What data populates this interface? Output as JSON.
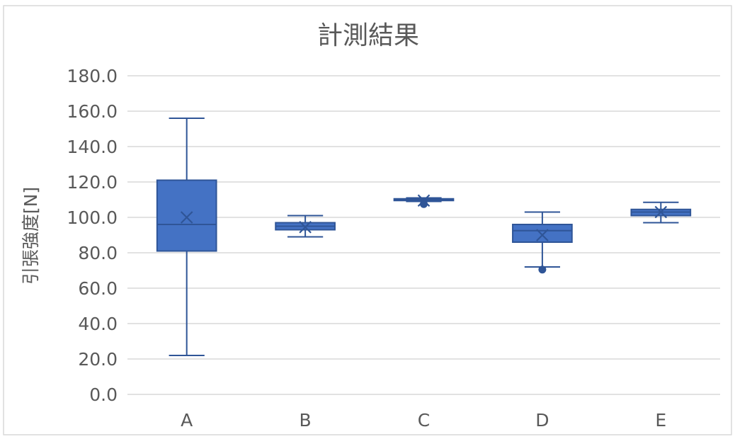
{
  "chart_data": {
    "type": "box",
    "title": "計測結果",
    "xlabel": "",
    "ylabel": "引張強度[N]",
    "ylim": [
      0,
      180
    ],
    "yticks": [
      "0.0",
      "20.0",
      "40.0",
      "60.0",
      "80.0",
      "100.0",
      "120.0",
      "140.0",
      "160.0",
      "180.0"
    ],
    "grid": true,
    "categories": [
      "A",
      "B",
      "C",
      "D",
      "E"
    ],
    "boxes": [
      {
        "category": "A",
        "min": 22.0,
        "q1": 81.0,
        "median": 96.0,
        "q3": 121.0,
        "max": 156.0,
        "mean": 100.0,
        "outliers": []
      },
      {
        "category": "B",
        "min": 89.0,
        "q1": 93.0,
        "median": 95.0,
        "q3": 97.0,
        "max": 101.0,
        "mean": 94.5,
        "outliers": []
      },
      {
        "category": "C",
        "min": 109.0,
        "q1": 109.5,
        "median": 110.0,
        "q3": 110.5,
        "max": 111.0,
        "mean": 109.5,
        "outliers": [
          107.5
        ]
      },
      {
        "category": "D",
        "min": 72.0,
        "q1": 86.0,
        "median": 92.5,
        "q3": 96.0,
        "max": 103.0,
        "mean": 90.0,
        "outliers": [
          70.5
        ]
      },
      {
        "category": "E",
        "min": 97.0,
        "q1": 101.0,
        "median": 103.0,
        "q3": 104.5,
        "max": 108.5,
        "mean": 103.0,
        "outliers": []
      }
    ],
    "colors": {
      "fill": "#4472c4",
      "stroke": "#2f5597",
      "grid": "#d9d9d9",
      "text": "#595959"
    }
  }
}
